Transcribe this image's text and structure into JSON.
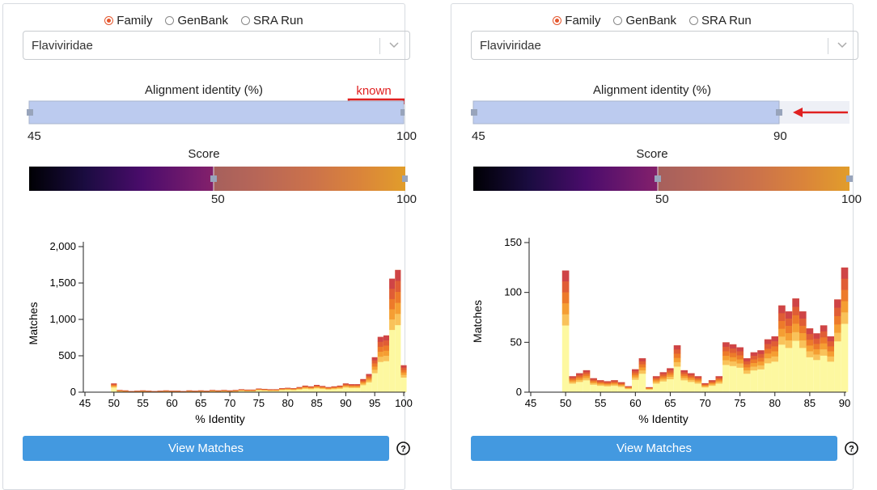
{
  "panels": [
    {
      "radio_options": [
        "Family",
        "GenBank",
        "SRA Run"
      ],
      "radio_selected": 0,
      "family_value": "Flaviviridae",
      "identity_title": "Alignment identity (%)",
      "identity_min_label": "45",
      "identity_max_label": "100",
      "identity_range": [
        45,
        100
      ],
      "annotation": "known",
      "score_title": "Score",
      "score_mid_label": "50",
      "score_max_label": "100",
      "view_label": "View Matches",
      "help_icon": "question-circle-icon",
      "chart_data": {
        "type": "bar",
        "xlabel": "% Identity",
        "ylabel": "Matches",
        "xlim": [
          45,
          100
        ],
        "ylim": [
          0,
          2000
        ],
        "x_ticks": [
          "45",
          "50",
          "55",
          "60",
          "65",
          "70",
          "75",
          "80",
          "85",
          "90",
          "95",
          "100"
        ],
        "y_ticks": [
          "0",
          "500",
          "1,000",
          "1,500",
          "2,000"
        ],
        "x": [
          50,
          51,
          52,
          53,
          54,
          55,
          56,
          57,
          58,
          59,
          60,
          61,
          62,
          63,
          64,
          65,
          66,
          67,
          68,
          69,
          70,
          71,
          72,
          73,
          74,
          75,
          76,
          77,
          78,
          79,
          80,
          81,
          82,
          83,
          84,
          85,
          86,
          87,
          88,
          89,
          90,
          91,
          92,
          93,
          94,
          95,
          96,
          97,
          98,
          99,
          100
        ],
        "values": [
          120,
          30,
          25,
          15,
          20,
          25,
          20,
          15,
          20,
          25,
          20,
          20,
          15,
          25,
          20,
          25,
          20,
          30,
          25,
          30,
          25,
          30,
          40,
          35,
          35,
          50,
          45,
          40,
          40,
          55,
          60,
          55,
          70,
          90,
          80,
          100,
          85,
          70,
          80,
          90,
          120,
          110,
          110,
          180,
          250,
          480,
          760,
          780,
          1560,
          1680,
          370
        ]
      }
    },
    {
      "radio_options": [
        "Family",
        "GenBank",
        "SRA Run"
      ],
      "radio_selected": 0,
      "family_value": "Flaviviridae",
      "identity_title": "Alignment identity (%)",
      "identity_min_label": "45",
      "identity_max_label": "90",
      "identity_range": [
        45,
        90
      ],
      "score_title": "Score",
      "score_mid_label": "50",
      "score_max_label": "100",
      "view_label": "View Matches",
      "help_icon": "question-circle-icon",
      "chart_data": {
        "type": "bar",
        "xlabel": "% Identity",
        "ylabel": "Matches",
        "xlim": [
          45,
          90
        ],
        "ylim": [
          0,
          150
        ],
        "x_ticks": [
          "45",
          "50",
          "55",
          "60",
          "65",
          "70",
          "75",
          "80",
          "85",
          "90"
        ],
        "y_ticks": [
          "0",
          "50",
          "100",
          "150"
        ],
        "x": [
          50,
          51,
          52,
          53,
          54,
          55,
          56,
          57,
          58,
          59,
          60,
          61,
          62,
          63,
          64,
          65,
          66,
          67,
          68,
          69,
          70,
          71,
          72,
          73,
          74,
          75,
          76,
          77,
          78,
          79,
          80,
          81,
          82,
          83,
          84,
          85,
          86,
          87,
          88,
          89,
          90
        ],
        "values": [
          122,
          16,
          19,
          22,
          14,
          12,
          11,
          12,
          10,
          6,
          23,
          34,
          5,
          16,
          20,
          24,
          47,
          22,
          19,
          16,
          9,
          12,
          16,
          50,
          48,
          45,
          34,
          40,
          42,
          53,
          56,
          87,
          81,
          94,
          81,
          64,
          59,
          67,
          56,
          93,
          125
        ]
      }
    }
  ]
}
